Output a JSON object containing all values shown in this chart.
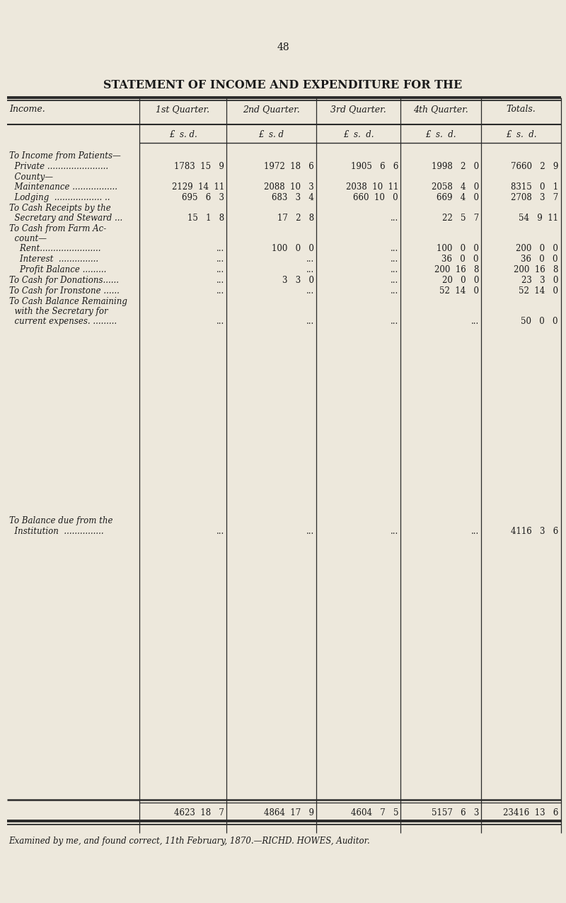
{
  "page_number": "48",
  "title": "STATEMENT OF INCOME AND EXPENDITURE FOR THE",
  "bg_color": "#ede8dc",
  "text_color": "#1a1a1a",
  "columns": [
    "Income.",
    "1st Quarter.",
    "2nd Quarter.",
    "3rd Quarter.",
    "4th Quarter.",
    "Totals."
  ],
  "sub_header": [
    "£  s.  d.",
    "£   s. d",
    "£  s.  d.",
    "£  s.  d.",
    "£  s.  d."
  ],
  "footer": "Examined by me, and found correct, 11th February, 1870.—RICHD. HOWES, Auditor."
}
